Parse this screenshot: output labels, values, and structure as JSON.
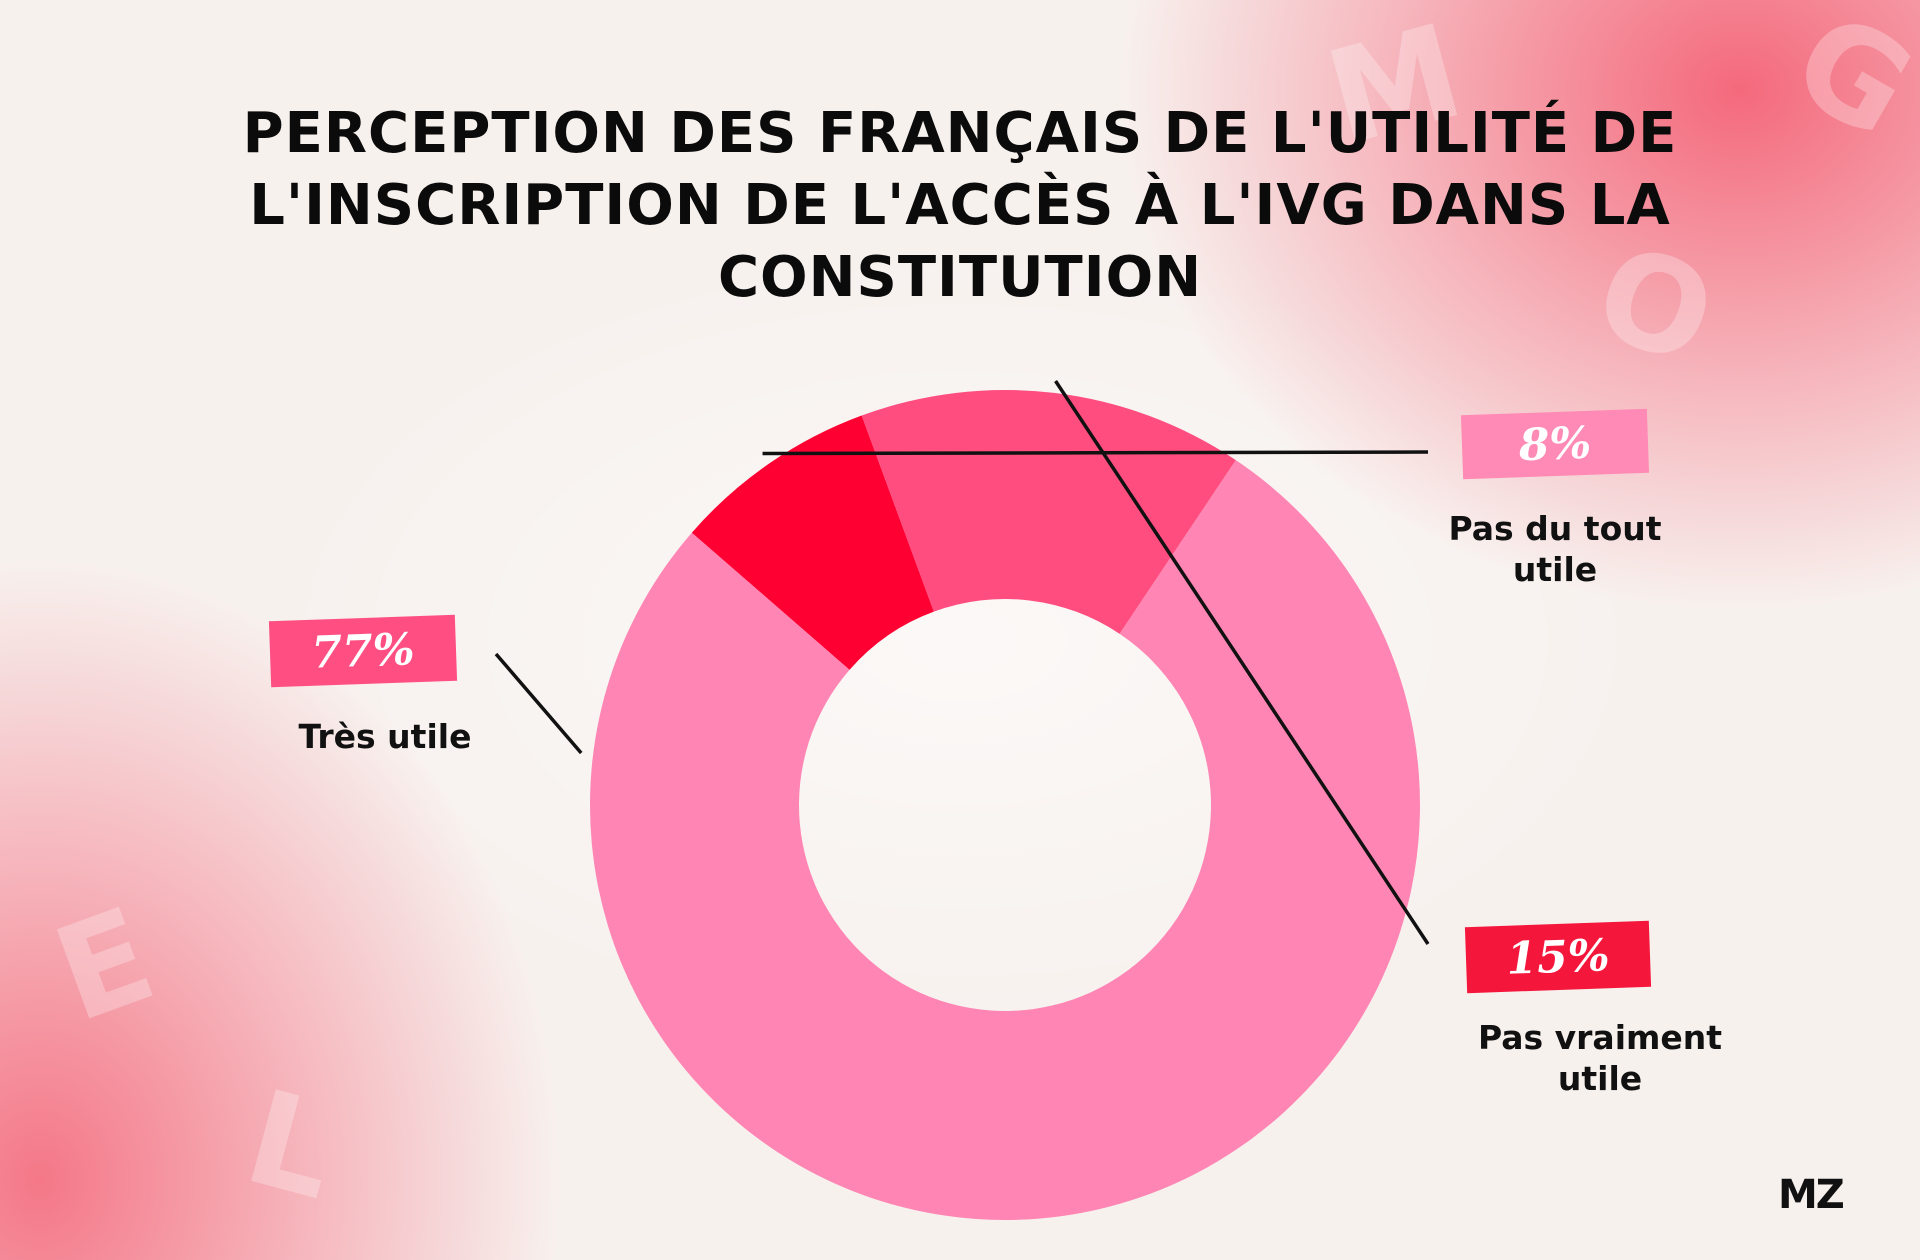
{
  "chart_data": {
    "type": "pie",
    "title": "PERCEPTION DES FRANÇAIS DE L'UTILITÉ DE L'INSCRIPTION DE L'ACCÈS À L'IVG DANS LA CONSTITUTION",
    "donut": true,
    "slices": [
      {
        "label": "Pas du tout utile",
        "value": 8,
        "value_label": "8%",
        "color": "#ff0033",
        "tag_color": "#ff8ab5"
      },
      {
        "label": "Pas vraiment utile",
        "value": 15,
        "value_label": "15%",
        "color": "#ff4d80",
        "tag_color": "#f5163c"
      },
      {
        "label": "Très utile",
        "value": 77,
        "value_label": "77%",
        "color": "#ff86b4",
        "tag_color": "#ff4f82"
      }
    ]
  },
  "logo": {
    "text": "MZ"
  },
  "colors": {
    "background": "#f7f1ee",
    "accent": "#f46276"
  }
}
